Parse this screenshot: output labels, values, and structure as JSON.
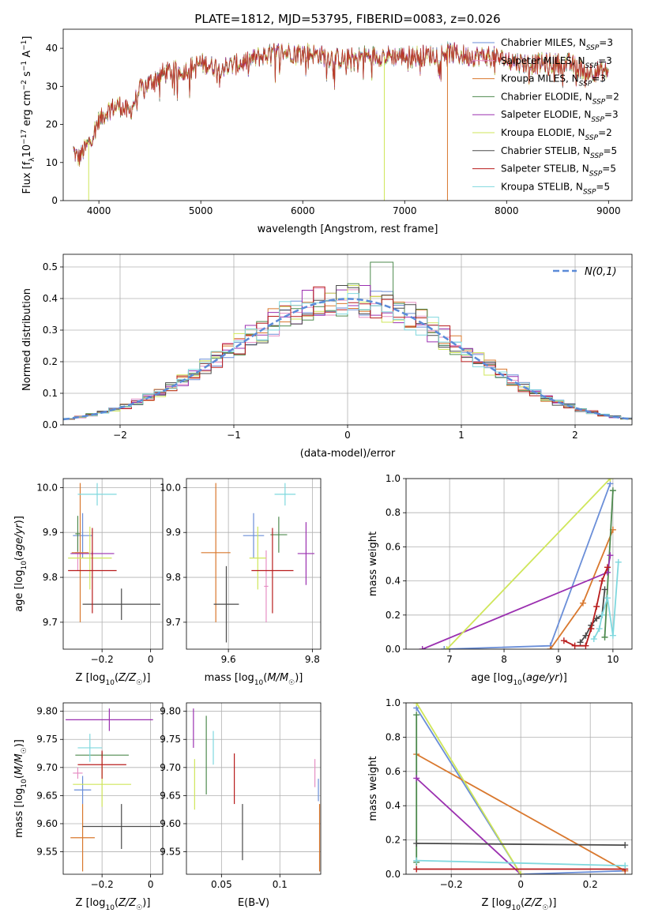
{
  "figure_title": "PLATE=1812, MJD=53795, FIBERID=0083, z=0.026",
  "models": [
    {
      "name": "Chabrier MILES",
      "nssp": "3",
      "color": "#6a8ed8"
    },
    {
      "name": "Salpeter MILES",
      "nssp": "3",
      "color": "#e68fc4"
    },
    {
      "name": "Kroupa MILES",
      "nssp": "3",
      "color": "#d9782e"
    },
    {
      "name": "Chabrier ELODIE",
      "nssp": "2",
      "color": "#4e8a4e"
    },
    {
      "name": "Salpeter ELODIE",
      "nssp": "3",
      "color": "#9b30b0"
    },
    {
      "name": "Kroupa ELODIE",
      "nssp": "2",
      "color": "#cfe65a"
    },
    {
      "name": "Chabrier STELIB",
      "nssp": "5",
      "color": "#4a4a4a"
    },
    {
      "name": "Salpeter STELIB",
      "nssp": "5",
      "color": "#b81c1c"
    },
    {
      "name": "Kroupa STELIB",
      "nssp": "5",
      "color": "#7fd8de"
    }
  ],
  "chart_data": [
    {
      "id": "spectrum",
      "type": "line",
      "xlabel": "wavelength [Angstrom, rest frame]",
      "ylabel": "Flux [f_λ10^-17 erg cm^-2 s^-1 A^-1]",
      "xlim": [
        3650,
        9230
      ],
      "ylim": [
        0,
        45
      ],
      "xticks": [
        4000,
        5000,
        6000,
        7000,
        8000,
        9000
      ],
      "yticks": [
        0,
        10,
        20,
        30,
        40
      ],
      "grid": false,
      "legend": "top-right",
      "continuum": {
        "x": [
          3750,
          3800,
          3900,
          4000,
          4100,
          4200,
          4300,
          4400,
          4500,
          4600,
          4700,
          4800,
          5000,
          5200,
          5400,
          5600,
          5800,
          6000,
          6200,
          6400,
          6600,
          6800,
          7000,
          7200,
          7400,
          7600,
          7800,
          8000,
          8200,
          8400,
          8600,
          8800,
          9000
        ],
        "y": [
          13,
          11,
          15,
          21,
          24,
          25,
          23,
          29,
          31,
          33,
          34,
          34,
          36,
          35,
          36,
          38,
          39,
          39,
          38,
          37,
          38,
          38,
          38,
          38,
          39,
          38,
          38,
          37,
          36,
          36,
          36,
          34,
          34
        ]
      },
      "drops": [
        {
          "model": "Kroupa ELODIE",
          "x": 3900
        },
        {
          "model": "Kroupa ELODIE",
          "x": 6800
        },
        {
          "model": "Kroupa MILES",
          "x": 7420
        }
      ]
    },
    {
      "id": "residuals",
      "type": "histogram",
      "xlabel": "(data-model)/error",
      "ylabel": "Normed distribution",
      "xlim": [
        -2.5,
        2.5
      ],
      "ylim": [
        0,
        0.54
      ],
      "xticks": [
        -2,
        -1,
        0,
        1,
        2
      ],
      "yticks": [
        0,
        0.1,
        0.2,
        0.3,
        0.4,
        0.5
      ],
      "grid": true,
      "legend": "top-right",
      "legend_label": "N(0,1)",
      "reference": {
        "type": "gaussian",
        "mean": 0,
        "sigma": 1,
        "color": "#5b8bd8"
      },
      "bin_width": 0.1,
      "bin_start": -2.5,
      "highlights": [
        {
          "x": 0.3,
          "y": 0.515
        }
      ]
    },
    {
      "id": "age_vs_Z",
      "type": "errorbar",
      "xlabel": "Z [log10(Z/Z☉)]",
      "ylabel": "age [log10(age/yr)]",
      "xlim": [
        -0.36,
        0.05
      ],
      "ylim": [
        9.64,
        10.02
      ],
      "xticks": [
        -0.2,
        0.0
      ],
      "yticks": [
        9.7,
        9.8,
        9.9,
        10.0
      ],
      "grid": true,
      "points": [
        {
          "model": "Chabrier MILES",
          "x": -0.28,
          "xerr": 0.04,
          "y": 9.893,
          "yerr": 0.05
        },
        {
          "model": "Salpeter MILES",
          "x": -0.3,
          "xerr": 0.01,
          "y": 9.855,
          "yerr": 0.04
        },
        {
          "model": "Kroupa MILES",
          "x": -0.29,
          "xerr": 0.035,
          "y": 9.855,
          "yerr": 0.155
        },
        {
          "model": "Chabrier ELODIE",
          "x": -0.3,
          "xerr": 0.01,
          "y": 9.897,
          "yerr": 0.04
        },
        {
          "model": "Salpeter ELODIE",
          "x": -0.24,
          "xerr": 0.09,
          "y": 9.853,
          "yerr": 0.005
        },
        {
          "model": "Kroupa ELODIE",
          "x": -0.25,
          "xerr": 0.09,
          "y": 9.843,
          "yerr": 0.07
        },
        {
          "model": "Chabrier STELIB",
          "x": -0.12,
          "xerr": 0.16,
          "y": 9.74,
          "yerr": 0.035
        },
        {
          "model": "Salpeter STELIB",
          "x": -0.24,
          "xerr": 0.1,
          "y": 9.815,
          "yerr": 0.095
        },
        {
          "model": "Kroupa STELIB",
          "x": -0.22,
          "xerr": 0.08,
          "y": 9.985,
          "yerr": 0.025
        }
      ]
    },
    {
      "id": "age_vs_mass",
      "type": "errorbar",
      "xlabel": "mass [log10(M/M☉)]",
      "ylabel": "",
      "xlim": [
        9.5,
        9.82
      ],
      "ylim": [
        9.64,
        10.02
      ],
      "xticks": [
        9.6,
        9.8
      ],
      "yticks": [
        9.7,
        9.8,
        9.9,
        10.0
      ],
      "grid": true,
      "points": [
        {
          "model": "Chabrier MILES",
          "x": 9.66,
          "xerr": 0.025,
          "y": 9.893,
          "yerr": 0.05
        },
        {
          "model": "Salpeter MILES",
          "x": 9.69,
          "xerr": 0.005,
          "y": 9.78,
          "yerr": 0.08
        },
        {
          "model": "Kroupa MILES",
          "x": 9.57,
          "xerr": 0.035,
          "y": 9.855,
          "yerr": 0.155
        },
        {
          "model": "Chabrier ELODIE",
          "x": 9.72,
          "xerr": 0.02,
          "y": 9.895,
          "yerr": 0.04
        },
        {
          "model": "Salpeter ELODIE",
          "x": 9.785,
          "xerr": 0.02,
          "y": 9.853,
          "yerr": 0.07
        },
        {
          "model": "Kroupa ELODIE",
          "x": 9.67,
          "xerr": 0.02,
          "y": 9.843,
          "yerr": 0.07
        },
        {
          "model": "Chabrier STELIB",
          "x": 9.595,
          "xerr": 0.03,
          "y": 9.74,
          "yerr": 0.085
        },
        {
          "model": "Salpeter STELIB",
          "x": 9.705,
          "xerr": 0.05,
          "y": 9.815,
          "yerr": 0.095
        },
        {
          "model": "Kroupa STELIB",
          "x": 9.735,
          "xerr": 0.025,
          "y": 9.985,
          "yerr": 0.025
        }
      ]
    },
    {
      "id": "weight_vs_age",
      "type": "line",
      "xlabel": "age [log10(age/yr)]",
      "ylabel": "mass weight",
      "xlim": [
        6.2,
        10.35
      ],
      "ylim": [
        0,
        1
      ],
      "xticks": [
        7,
        8,
        9,
        10
      ],
      "yticks": [
        0,
        0.2,
        0.4,
        0.6,
        0.8,
        1.0
      ],
      "grid": true,
      "series": [
        {
          "model": "Chabrier MILES",
          "x": [
            6.9,
            8.85,
            9.95
          ],
          "y": [
            0,
            0.02,
            0.97
          ]
        },
        {
          "model": "Kroupa MILES",
          "x": [
            8.85,
            9.45,
            10.0
          ],
          "y": [
            0,
            0.27,
            0.7
          ]
        },
        {
          "model": "Chabrier ELODIE",
          "x": [
            9.85,
            10.0
          ],
          "y": [
            0.07,
            0.93
          ]
        },
        {
          "model": "Salpeter ELODIE",
          "x": [
            6.5,
            9.9,
            9.95
          ],
          "y": [
            0,
            0.45,
            0.55
          ]
        },
        {
          "model": "Kroupa ELODIE",
          "x": [
            6.95,
            9.95
          ],
          "y": [
            0,
            1.0
          ]
        },
        {
          "model": "Chabrier STELIB",
          "x": [
            9.4,
            9.5,
            9.6,
            9.7,
            9.8,
            9.85
          ],
          "y": [
            0.04,
            0.08,
            0.14,
            0.18,
            0.2,
            0.35
          ]
        },
        {
          "model": "Salpeter STELIB",
          "x": [
            9.1,
            9.3,
            9.5,
            9.6,
            9.7,
            9.8,
            9.9
          ],
          "y": [
            0.05,
            0.02,
            0.02,
            0.12,
            0.25,
            0.4,
            0.48
          ]
        },
        {
          "model": "Kroupa STELIB",
          "x": [
            9.65,
            9.75,
            9.8,
            9.9,
            10.0,
            10.1
          ],
          "y": [
            0.06,
            0.12,
            0.2,
            0.3,
            0.08,
            0.51
          ]
        }
      ]
    },
    {
      "id": "mass_vs_Z",
      "type": "errorbar",
      "xlabel": "Z [log10(Z/Z☉)]",
      "ylabel": "mass [log10(M/M☉)]",
      "xlim": [
        -0.36,
        0.05
      ],
      "ylim": [
        9.51,
        9.815
      ],
      "xticks": [
        -0.2,
        0.0
      ],
      "yticks": [
        9.55,
        9.6,
        9.65,
        9.7,
        9.75,
        9.8
      ],
      "grid": true,
      "points": [
        {
          "model": "Chabrier MILES",
          "x": -0.28,
          "xerr": 0.035,
          "y": 9.66,
          "yerr": 0.025
        },
        {
          "model": "Salpeter MILES",
          "x": -0.3,
          "xerr": 0.02,
          "y": 9.69,
          "yerr": 0.01
        },
        {
          "model": "Kroupa MILES",
          "x": -0.28,
          "xerr": 0.05,
          "y": 9.575,
          "yerr": 0.06
        },
        {
          "model": "Chabrier ELODIE",
          "x": -0.2,
          "xerr": 0.11,
          "y": 9.722,
          "yerr": 0.005
        },
        {
          "model": "Salpeter ELODIE",
          "x": -0.17,
          "xerr": 0.18,
          "y": 9.785,
          "yerr": 0.02
        },
        {
          "model": "Kroupa ELODIE",
          "x": -0.2,
          "xerr": 0.12,
          "y": 9.67,
          "yerr": 0.04
        },
        {
          "model": "Chabrier STELIB",
          "x": -0.12,
          "xerr": 0.16,
          "y": 9.595,
          "yerr": 0.04
        },
        {
          "model": "Salpeter STELIB",
          "x": -0.2,
          "xerr": 0.1,
          "y": 9.705,
          "yerr": 0.025
        },
        {
          "model": "Kroupa STELIB",
          "x": -0.25,
          "xerr": 0.05,
          "y": 9.735,
          "yerr": 0.025
        }
      ]
    },
    {
      "id": "mass_vs_EBV",
      "type": "errorbar",
      "xlabel": "E(B-V)",
      "ylabel": "",
      "xlim": [
        0.02,
        0.135
      ],
      "ylim": [
        9.51,
        9.815
      ],
      "xticks": [
        0.05,
        0.1
      ],
      "yticks": [
        9.55,
        9.6,
        9.65,
        9.7,
        9.75,
        9.8
      ],
      "grid": true,
      "points": [
        {
          "model": "Chabrier MILES",
          "x": 0.133,
          "y": 9.66,
          "yerr": 0.02
        },
        {
          "model": "Salpeter MILES",
          "x": 0.13,
          "y": 9.69,
          "yerr": 0.025
        },
        {
          "model": "Kroupa MILES",
          "x": 0.134,
          "y": 9.575,
          "yerr": 0.06
        },
        {
          "model": "Chabrier ELODIE",
          "x": 0.037,
          "y": 9.722,
          "yerr": 0.07
        },
        {
          "model": "Salpeter ELODIE",
          "x": 0.026,
          "y": 9.77,
          "yerr": 0.035
        },
        {
          "model": "Kroupa ELODIE",
          "x": 0.027,
          "y": 9.67,
          "yerr": 0.045
        },
        {
          "model": "Chabrier STELIB",
          "x": 0.068,
          "y": 9.585,
          "yerr": 0.05
        },
        {
          "model": "Salpeter STELIB",
          "x": 0.061,
          "y": 9.68,
          "yerr": 0.045
        },
        {
          "model": "Kroupa STELIB",
          "x": 0.043,
          "y": 9.735,
          "yerr": 0.03
        }
      ]
    },
    {
      "id": "weight_vs_Z",
      "type": "line",
      "xlabel": "Z [log10(Z/Z☉)]",
      "ylabel": "mass weight",
      "xlim": [
        -0.33,
        0.32
      ],
      "ylim": [
        0,
        1
      ],
      "xticks": [
        -0.2,
        0.0,
        0.2
      ],
      "yticks": [
        0,
        0.2,
        0.4,
        0.6,
        0.8,
        1.0
      ],
      "grid": true,
      "series": [
        {
          "model": "Chabrier MILES",
          "x": [
            -0.3,
            0.0,
            0.3
          ],
          "y": [
            0.97,
            0,
            0.02
          ]
        },
        {
          "model": "Kroupa MILES",
          "x": [
            -0.3,
            0.3
          ],
          "y": [
            0.7,
            0.02
          ]
        },
        {
          "model": "Chabrier ELODIE",
          "x": [
            -0.3,
            -0.3
          ],
          "y": [
            0.07,
            0.93
          ]
        },
        {
          "model": "Salpeter ELODIE",
          "x": [
            -0.3,
            0.0
          ],
          "y": [
            0.56,
            0
          ]
        },
        {
          "model": "Kroupa ELODIE",
          "x": [
            -0.3,
            0.0
          ],
          "y": [
            1.0,
            0
          ]
        },
        {
          "model": "Chabrier STELIB",
          "x": [
            -0.3,
            0.3
          ],
          "y": [
            0.18,
            0.17
          ]
        },
        {
          "model": "Salpeter STELIB",
          "x": [
            -0.3,
            0.3
          ],
          "y": [
            0.03,
            0.03
          ]
        },
        {
          "model": "Kroupa STELIB",
          "x": [
            -0.3,
            0.3
          ],
          "y": [
            0.08,
            0.05
          ]
        }
      ]
    }
  ]
}
